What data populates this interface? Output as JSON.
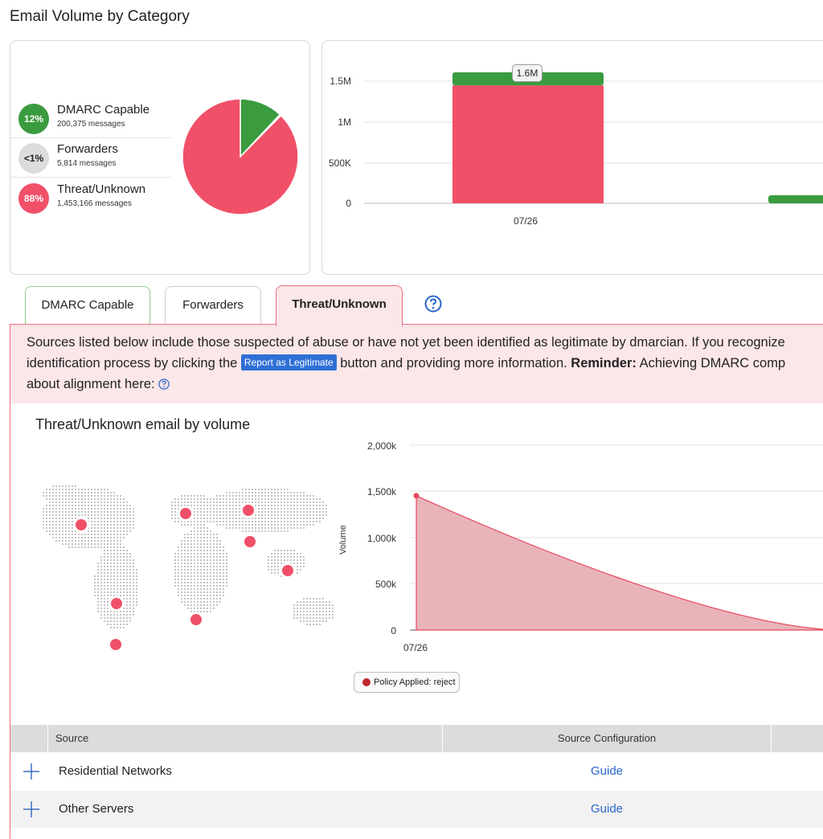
{
  "page": {
    "title": "Email Volume by Category"
  },
  "categories": [
    {
      "percent": "12%",
      "label": "DMARC Capable",
      "messages": "200,375 messages",
      "color": "#3a9b3f",
      "share": 0.12
    },
    {
      "percent": "<1%",
      "label": "Forwarders",
      "messages": "5,814 messages",
      "color": "#dcdcdc",
      "share": 0.004
    },
    {
      "percent": "88%",
      "label": "Threat/Unknown",
      "messages": "1,453,166 messages",
      "color": "#f05068",
      "share": 0.876
    }
  ],
  "bar_chart": {
    "y_ticks": [
      "1.5M",
      "1M",
      "500K",
      "0"
    ],
    "x_label": "07/26",
    "tooltip": "1.6M",
    "bar_segments": {
      "threat": 1453166,
      "dmarc": 200375
    }
  },
  "tabs": [
    {
      "label": "DMARC Capable"
    },
    {
      "label": "Forwarders"
    },
    {
      "label": "Threat/Unknown"
    }
  ],
  "notice": {
    "line1": "Sources listed below include those suspected of abuse or have not yet been identified as legitimate by dmarcian. If you recognize",
    "line2_a": "identification process by clicking the ",
    "report_button": "Report as Legitimate",
    "line2_b": " button and providing more information. ",
    "reminder_bold": "Reminder:",
    "line2_c": " Achieving DMARC comp",
    "line3": "about alignment here: "
  },
  "volume_section": {
    "title": "Threat/Unknown email by volume",
    "y_axis_label": "Volume",
    "y_ticks": [
      "2,000k",
      "1,500k",
      "1,000k",
      "500k",
      "0"
    ],
    "x_label": "07/26",
    "area_start_value_k": 1453,
    "policy_chip": "Policy Applied: reject"
  },
  "chart_data": [
    {
      "type": "bar",
      "categories": [
        "07/26"
      ],
      "series": [
        {
          "values": [
            1453166
          ]
        },
        {
          "values": [
            200375
          ]
        }
      ],
      "ylim": [
        0,
        1600000
      ]
    },
    {
      "type": "area",
      "x": [
        "07/26"
      ],
      "values": [
        1453166
      ],
      "ylabel": "Volume",
      "ylim": [
        0,
        2000000
      ]
    }
  ],
  "map_markers": [
    {
      "name": "north-america"
    },
    {
      "name": "south-america-north"
    },
    {
      "name": "south-america-south"
    },
    {
      "name": "europe-west"
    },
    {
      "name": "russia"
    },
    {
      "name": "asia-china"
    },
    {
      "name": "southeast-asia"
    },
    {
      "name": "south-africa"
    }
  ],
  "table": {
    "headers": [
      "Source",
      "Source Configuration"
    ],
    "rows": [
      {
        "source": "Residential Networks",
        "config": "Guide"
      },
      {
        "source": "Other Servers",
        "config": "Guide"
      }
    ]
  },
  "colors": {
    "threat": "#f05068",
    "dmarc": "#3a9b3f",
    "link": "#2a67c9",
    "notice_bg": "#fbe6e8"
  }
}
